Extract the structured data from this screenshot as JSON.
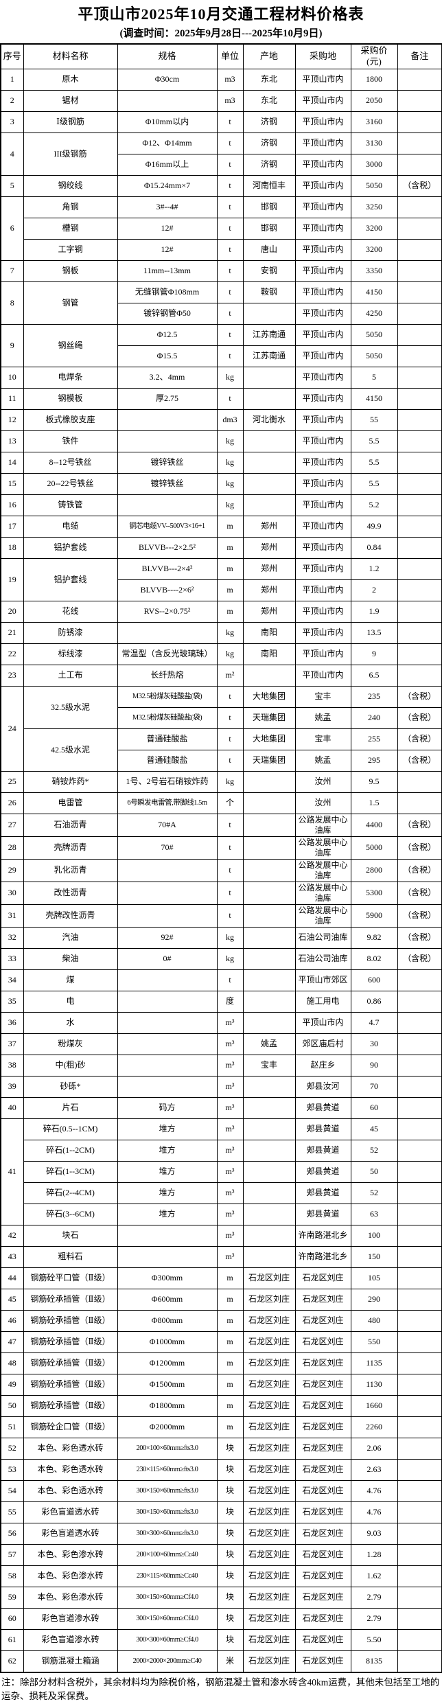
{
  "title": "平顶山市2025年10月交通工程材料价格表",
  "subtitle": "(调查时间：2025年9月28日---2025年10月9日)",
  "note": "注：除部分材料含税外，其余材料均为除税价格，钢筋混凝土管和渗水砖含40km运费，其他未包括至工地的运杂、损耗及采保费。",
  "columns": [
    "序号",
    "材料名称",
    "规格",
    "单位",
    "产地",
    "采购地",
    "采购价\n(元)",
    "备注"
  ],
  "rows": [
    [
      "1",
      "原木",
      "Φ30cm",
      "m3",
      "东北",
      "平顶山市内",
      "1800",
      ""
    ],
    [
      "2",
      "锯材",
      "",
      "m3",
      "东北",
      "平顶山市内",
      "2050",
      ""
    ],
    [
      "3",
      "Ⅰ级钢筋",
      "Φ10mm以内",
      "t",
      "济钢",
      "平顶山市内",
      "3160",
      ""
    ],
    [
      {
        "v": "4",
        "rs": 2
      },
      {
        "v": "III级钢筋",
        "rs": 2
      },
      "Φ12、Φ14mm",
      "t",
      "济钢",
      "平顶山市内",
      "3130",
      ""
    ],
    [
      "Φ16mm以上",
      "t",
      "济钢",
      "平顶山市内",
      "3000",
      ""
    ],
    [
      "5",
      "钢绞线",
      "Φ15.24mm×7",
      "t",
      "河南恒丰",
      "平顶山市内",
      "5050",
      "（含税）"
    ],
    [
      {
        "v": "6",
        "rs": 3
      },
      "角钢",
      "3#--4#",
      "t",
      "邯钢",
      "平顶山市内",
      "3250",
      ""
    ],
    [
      "槽钢",
      "12#",
      "t",
      "邯钢",
      "平顶山市内",
      "3200",
      ""
    ],
    [
      "工字钢",
      "12#",
      "t",
      "唐山",
      "平顶山市内",
      "3200",
      ""
    ],
    [
      "7",
      "钢板",
      "11mm--13mm",
      "t",
      "安钢",
      "平顶山市内",
      "3350",
      ""
    ],
    [
      {
        "v": "8",
        "rs": 2
      },
      {
        "v": "钢管",
        "rs": 2
      },
      "无缝钢管Φ108mm",
      "t",
      "鞍钢",
      "平顶山市内",
      "4150",
      ""
    ],
    [
      "镀锌钢管Φ50",
      "t",
      "",
      "平顶山市内",
      "4250",
      ""
    ],
    [
      {
        "v": "9",
        "rs": 2
      },
      {
        "v": "钢丝绳",
        "rs": 2
      },
      "Φ12.5",
      "t",
      "江苏南通",
      "平顶山市内",
      "5050",
      ""
    ],
    [
      "Φ15.5",
      "t",
      "江苏南通",
      "平顶山市内",
      "5050",
      ""
    ],
    [
      "10",
      "电焊条",
      "3.2、4mm",
      "kg",
      "",
      "平顶山市内",
      "5",
      ""
    ],
    [
      "11",
      "钢模板",
      "厚2.75",
      "t",
      "",
      "平顶山市内",
      "4150",
      ""
    ],
    [
      "12",
      "板式橡胶支座",
      "",
      "dm3",
      "河北衡水",
      "平顶山市内",
      "55",
      ""
    ],
    [
      "13",
      "铁件",
      "",
      "kg",
      "",
      "平顶山市内",
      "5.5",
      ""
    ],
    [
      "14",
      "8--12号铁丝",
      "镀锌铁丝",
      "kg",
      "",
      "平顶山市内",
      "5.5",
      ""
    ],
    [
      "15",
      "20--22号铁丝",
      "镀锌铁丝",
      "kg",
      "",
      "平顶山市内",
      "5.5",
      ""
    ],
    [
      "16",
      "铸铁管",
      "",
      "kg",
      "",
      "平顶山市内",
      "5.2",
      ""
    ],
    [
      "17",
      "电缆",
      {
        "v": "铜芯电缆VV--500V3×16+1",
        "sm": 1
      },
      "m",
      "郑州",
      "平顶山市内",
      "49.9",
      ""
    ],
    [
      "18",
      "铝护套线",
      "BLVVB---2×2.5²",
      "m",
      "郑州",
      "平顶山市内",
      "0.84",
      ""
    ],
    [
      {
        "v": "19",
        "rs": 2
      },
      {
        "v": "铝护套线",
        "rs": 2
      },
      "BLVVB---2×4²",
      "m",
      "郑州",
      "平顶山市内",
      "1.2",
      ""
    ],
    [
      "BLVVB----2×6²",
      "m",
      "郑州",
      "平顶山市内",
      "2",
      ""
    ],
    [
      "20",
      "花线",
      "RVS--2×0.75²",
      "m",
      "郑州",
      "平顶山市内",
      "1.9",
      ""
    ],
    [
      "21",
      "防锈漆",
      "",
      "kg",
      "南阳",
      "平顶山市内",
      "13.5",
      ""
    ],
    [
      "22",
      "标线漆",
      "常温型（含反光玻璃珠）",
      "kg",
      "南阳",
      "平顶山市内",
      "9",
      ""
    ],
    [
      "23",
      "土工布",
      "长纤热熔",
      "m²",
      "",
      "平顶山市内",
      "6.5",
      ""
    ],
    [
      {
        "v": "24",
        "rs": 4
      },
      {
        "v": "32.5级水泥",
        "rs": 2
      },
      {
        "v": "M32.5粉煤灰硅酸盐(袋)",
        "sm": 1
      },
      "t",
      "大地集团",
      "宝丰",
      "235",
      "（含税）"
    ],
    [
      {
        "v": "M32.5粉煤灰硅酸盐(袋)",
        "sm": 1
      },
      "t",
      "天瑞集团",
      "姚孟",
      "240",
      "（含税）"
    ],
    [
      {
        "v": "42.5级水泥",
        "rs": 2
      },
      "普通硅酸盐",
      "t",
      "大地集团",
      "宝丰",
      "255",
      "（含税）"
    ],
    [
      "普通硅酸盐",
      "t",
      "天瑞集团",
      "姚孟",
      "295",
      "（含税）"
    ],
    [
      "25",
      "硝铵炸药*",
      "1号、2号岩石硝铵炸药",
      "kg",
      "",
      "汝州",
      "9.5",
      ""
    ],
    [
      "26",
      "电雷管",
      {
        "v": "6号瞬发电雷管,带脚线1.5m",
        "sm": 1
      },
      "个",
      "",
      "汝州",
      "1.5",
      ""
    ],
    [
      "27",
      "石油沥青",
      "70#A",
      "t",
      "",
      "公路发展中心油库",
      "4400",
      "（含税）"
    ],
    [
      "28",
      "壳牌沥青",
      "70#",
      "t",
      "",
      "公路发展中心油库",
      "5000",
      "（含税）"
    ],
    [
      "29",
      "乳化沥青",
      "",
      "t",
      "",
      "公路发展中心油库",
      "2800",
      "（含税）"
    ],
    [
      "30",
      "改性沥青",
      "",
      "t",
      "",
      "公路发展中心油库",
      "5300",
      "（含税）"
    ],
    [
      "31",
      "壳牌改性沥青",
      "",
      "t",
      "",
      "公路发展中心油库",
      "5900",
      "（含税）"
    ],
    [
      "32",
      "汽油",
      "92#",
      "kg",
      "",
      "石油公司油库",
      "9.82",
      "（含税）"
    ],
    [
      "33",
      "柴油",
      "0#",
      "kg",
      "",
      "石油公司油库",
      "8.02",
      "（含税）"
    ],
    [
      "34",
      "煤",
      "",
      "t",
      "",
      "平顶山市郊区",
      "600",
      ""
    ],
    [
      "35",
      "电",
      "",
      "度",
      "",
      "施工用电",
      "0.86",
      ""
    ],
    [
      "36",
      "水",
      "",
      "m³",
      "",
      "平顶山市内",
      "4.7",
      ""
    ],
    [
      "37",
      "粉煤灰",
      "",
      "m³",
      "姚孟",
      "郊区庙后村",
      "30",
      ""
    ],
    [
      "38",
      "中(粗)砂",
      "",
      "m³",
      "宝丰",
      "赵庄乡",
      "90",
      ""
    ],
    [
      "39",
      "砂砾*",
      "",
      "m³",
      "",
      "郏县汝河",
      "70",
      ""
    ],
    [
      "40",
      "片石",
      "码方",
      "m³",
      "",
      "郏县黄道",
      "60",
      ""
    ],
    [
      {
        "v": "41",
        "rs": 5
      },
      "碎石(0.5--1CM)",
      "堆方",
      "m³",
      "",
      "郏县黄道",
      "45",
      ""
    ],
    [
      "碎石(1--2CM)",
      "堆方",
      "m³",
      "",
      "郏县黄道",
      "52",
      ""
    ],
    [
      "碎石(1--3CM)",
      "堆方",
      "m³",
      "",
      "郏县黄道",
      "50",
      ""
    ],
    [
      "碎石(2--4CM)",
      "堆方",
      "m³",
      "",
      "郏县黄道",
      "52",
      ""
    ],
    [
      "碎石(3--6CM)",
      "堆方",
      "m³",
      "",
      "郏县黄道",
      "63",
      ""
    ],
    [
      "42",
      "块石",
      "",
      "m³",
      "",
      "许南路湛北乡",
      "100",
      ""
    ],
    [
      "43",
      "粗料石",
      "",
      "m³",
      "",
      "许南路湛北乡",
      "150",
      ""
    ],
    [
      "44",
      "钢筋砼平口管（Ⅱ级）",
      "Φ300mm",
      "m",
      "石龙区刘庄",
      "石龙区刘庄",
      "105",
      ""
    ],
    [
      "45",
      "钢筋砼承插管（Ⅱ级）",
      "Φ600mm",
      "m",
      "石龙区刘庄",
      "石龙区刘庄",
      "290",
      ""
    ],
    [
      "46",
      "钢筋砼承插管（Ⅱ级）",
      "Φ800mm",
      "m",
      "石龙区刘庄",
      "石龙区刘庄",
      "480",
      ""
    ],
    [
      "47",
      "钢筋砼承插管（Ⅱ级）",
      "Φ1000mm",
      "m",
      "石龙区刘庄",
      "石龙区刘庄",
      "550",
      ""
    ],
    [
      "48",
      "钢筋砼承插管（Ⅱ级）",
      "Φ1200mm",
      "m",
      "石龙区刘庄",
      "石龙区刘庄",
      "1135",
      ""
    ],
    [
      "49",
      "钢筋砼承插管（Ⅱ级）",
      "Φ1500mm",
      "m",
      "石龙区刘庄",
      "石龙区刘庄",
      "1130",
      ""
    ],
    [
      "50",
      "钢筋砼承插管（Ⅱ级）",
      "Φ1800mm",
      "m",
      "石龙区刘庄",
      "石龙区刘庄",
      "1660",
      ""
    ],
    [
      "51",
      "钢筋砼企口管（Ⅱ级）",
      "Φ2000mm",
      "m",
      "石龙区刘庄",
      "石龙区刘庄",
      "2260",
      ""
    ],
    [
      "52",
      "本色、彩色透水砖",
      {
        "v": "200×100×60mm≥fts3.0",
        "sm": 1
      },
      "块",
      "石龙区刘庄",
      "石龙区刘庄",
      "2.06",
      ""
    ],
    [
      "53",
      "本色、彩色透水砖",
      {
        "v": "230×115×60mm≥fts3.0",
        "sm": 1
      },
      "块",
      "石龙区刘庄",
      "石龙区刘庄",
      "2.63",
      ""
    ],
    [
      "54",
      "本色、彩色透水砖",
      {
        "v": "300×150×60mm≥fts3.0",
        "sm": 1
      },
      "块",
      "石龙区刘庄",
      "石龙区刘庄",
      "4.76",
      ""
    ],
    [
      "55",
      "彩色盲道透水砖",
      {
        "v": "300×150×60mm≥fts3.0",
        "sm": 1
      },
      "块",
      "石龙区刘庄",
      "石龙区刘庄",
      "4.76",
      ""
    ],
    [
      "56",
      "彩色盲道透水砖",
      {
        "v": "300×300×60mm≥fts3.0",
        "sm": 1
      },
      "块",
      "石龙区刘庄",
      "石龙区刘庄",
      "9.03",
      ""
    ],
    [
      "57",
      "本色、彩色渗水砖",
      {
        "v": "200×100×60mm≥Cc40",
        "sm": 1
      },
      "块",
      "石龙区刘庄",
      "石龙区刘庄",
      "1.28",
      ""
    ],
    [
      "58",
      "本色、彩色渗水砖",
      {
        "v": "230×115×60mm≥Cc40",
        "sm": 1
      },
      "块",
      "石龙区刘庄",
      "石龙区刘庄",
      "1.62",
      ""
    ],
    [
      "59",
      "本色、彩色渗水砖",
      {
        "v": "300×150×60mm≥Cf4.0",
        "sm": 1
      },
      "块",
      "石龙区刘庄",
      "石龙区刘庄",
      "2.79",
      ""
    ],
    [
      "60",
      "彩色盲道渗水砖",
      {
        "v": "300×150×60mm≥Cf4.0",
        "sm": 1
      },
      "块",
      "石龙区刘庄",
      "石龙区刘庄",
      "2.79",
      ""
    ],
    [
      "61",
      "彩色盲道渗水砖",
      {
        "v": "300×300×60mm≥Cf4.0",
        "sm": 1
      },
      "块",
      "石龙区刘庄",
      "石龙区刘庄",
      "5.50",
      ""
    ],
    [
      "62",
      "钢筋混凝土箱涵",
      {
        "v": "2000×2000×200mm≥C40",
        "sm": 1
      },
      "米",
      "石龙区刘庄",
      "石龙区刘庄",
      "8135",
      ""
    ]
  ]
}
